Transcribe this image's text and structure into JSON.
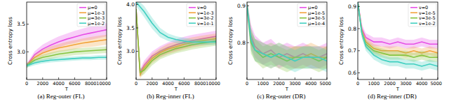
{
  "chart_data": [
    {
      "type": "line",
      "title": "(a) Reg-outer (FL)",
      "x_label": "T",
      "y_label": "Cross entropy loss",
      "x": [
        0,
        1000,
        2000,
        3000,
        4000,
        5000,
        6000,
        7000,
        8000,
        9000,
        10000
      ],
      "xlim": [
        0,
        10000
      ],
      "xticks": [
        0,
        2000,
        4000,
        6000,
        8000,
        10000
      ],
      "ylim": [
        2.5,
        3.9
      ],
      "yticks": [
        {
          "value": 3,
          "label": "3.0"
        },
        3.5
      ],
      "grid": false,
      "legend": "upper right",
      "series": [
        {
          "name": "μ=0",
          "color": "#e64ee6",
          "values": [
            2.75,
            2.95,
            3.05,
            3.12,
            3.18,
            3.23,
            3.27,
            3.31,
            3.34,
            3.37,
            3.4
          ],
          "error": [
            0.04,
            0.06,
            0.08,
            0.09,
            0.1,
            0.1,
            0.11,
            0.11,
            0.12,
            0.12,
            0.12
          ]
        },
        {
          "name": "μ=1e-3",
          "color": "#f2a33a",
          "values": [
            2.75,
            2.9,
            2.98,
            3.03,
            3.07,
            3.1,
            3.13,
            3.16,
            3.18,
            3.2,
            3.22
          ],
          "error": [
            0.04,
            0.05,
            0.06,
            0.07,
            0.07,
            0.08,
            0.08,
            0.08,
            0.09,
            0.09,
            0.09
          ]
        },
        {
          "name": "μ=3e-3",
          "color": "#86c440",
          "values": [
            2.75,
            2.85,
            2.9,
            2.93,
            2.96,
            2.98,
            3.0,
            3.01,
            3.02,
            3.03,
            3.04
          ],
          "error": [
            0.04,
            0.05,
            0.05,
            0.06,
            0.06,
            0.06,
            0.06,
            0.06,
            0.06,
            0.06,
            0.06
          ]
        },
        {
          "name": "μ=1e-2",
          "color": "#3fcfc0",
          "values": [
            2.75,
            2.8,
            2.83,
            2.85,
            2.86,
            2.87,
            2.88,
            2.89,
            2.89,
            2.9,
            2.9
          ],
          "error": [
            0.04,
            0.04,
            0.04,
            0.04,
            0.04,
            0.04,
            0.04,
            0.04,
            0.04,
            0.04,
            0.04
          ]
        }
      ]
    },
    {
      "type": "line",
      "title": "(b) Reg-inner (FL)",
      "x_label": "T",
      "y_label": "Cross entropy loss",
      "x": [
        0,
        500,
        1000,
        2000,
        3000,
        4000,
        5000,
        6000,
        7000,
        8000,
        10000
      ],
      "xlim": [
        0,
        10000
      ],
      "xticks": [
        0,
        2000,
        4000,
        6000,
        8000,
        10000
      ],
      "ylim": [
        2.4,
        4.05
      ],
      "yticks": [
        {
          "value": 3,
          "label": "3.0"
        },
        3.5,
        {
          "value": 4,
          "label": "4.0"
        }
      ],
      "grid": false,
      "legend": "upper right",
      "series": [
        {
          "name": "ν=0",
          "color": "#e64ee6",
          "values": [
            3.9,
            2.55,
            2.7,
            2.9,
            3.0,
            3.08,
            3.14,
            3.19,
            3.23,
            3.26,
            3.32
          ],
          "error": [
            0.1,
            0.08,
            0.1,
            0.1,
            0.11,
            0.11,
            0.12,
            0.12,
            0.12,
            0.12,
            0.12
          ]
        },
        {
          "name": "ν=1e-3",
          "color": "#f2a33a",
          "values": [
            3.9,
            2.5,
            2.65,
            2.85,
            2.97,
            3.05,
            3.1,
            3.15,
            3.19,
            3.22,
            3.27
          ],
          "error": [
            0.1,
            0.08,
            0.1,
            0.1,
            0.1,
            0.11,
            0.11,
            0.11,
            0.11,
            0.11,
            0.11
          ]
        },
        {
          "name": "ν=3e-2",
          "color": "#86c440",
          "values": [
            3.9,
            2.55,
            2.6,
            2.8,
            2.93,
            3.0,
            3.06,
            3.1,
            3.14,
            3.17,
            3.22
          ],
          "error": [
            0.1,
            0.08,
            0.09,
            0.1,
            0.1,
            0.1,
            0.1,
            0.1,
            0.1,
            0.1,
            0.1
          ]
        },
        {
          "name": "ν=1e-1",
          "color": "#3fcfc0",
          "values": [
            4.05,
            3.95,
            3.85,
            3.6,
            3.4,
            3.3,
            3.25,
            3.22,
            3.2,
            3.2,
            3.2
          ],
          "error": [
            0.08,
            0.1,
            0.12,
            0.12,
            0.1,
            0.08,
            0.07,
            0.07,
            0.06,
            0.06,
            0.06
          ]
        }
      ]
    },
    {
      "type": "line",
      "title": "(c) Reg-outer (DR)",
      "x_label": "T",
      "y_label": "Cross entropy loss",
      "x": [
        0,
        250,
        500,
        1000,
        1500,
        2000,
        2500,
        3000,
        3500,
        4000,
        4500,
        5000
      ],
      "xlim": [
        0,
        5000
      ],
      "xticks": [
        0,
        1000,
        2000,
        3000,
        4000,
        5000
      ],
      "ylim": [
        0.7,
        0.91
      ],
      "yticks": [
        0.8,
        0.9
      ],
      "grid": false,
      "legend": "upper right",
      "series": [
        {
          "name": "μ=0",
          "color": "#e64ee6",
          "values": [
            0.9,
            0.82,
            0.79,
            0.77,
            0.78,
            0.76,
            0.77,
            0.76,
            0.77,
            0.76,
            0.76,
            0.77
          ],
          "error": [
            0.02,
            0.03,
            0.03,
            0.03,
            0.03,
            0.03,
            0.03,
            0.03,
            0.03,
            0.03,
            0.03,
            0.03
          ]
        },
        {
          "name": "μ=1e-5",
          "color": "#f2a33a",
          "values": [
            0.9,
            0.81,
            0.78,
            0.77,
            0.76,
            0.77,
            0.76,
            0.76,
            0.76,
            0.77,
            0.76,
            0.76
          ],
          "error": [
            0.02,
            0.03,
            0.03,
            0.03,
            0.03,
            0.03,
            0.03,
            0.03,
            0.03,
            0.03,
            0.03,
            0.03
          ]
        },
        {
          "name": "μ=3e-5",
          "color": "#86c440",
          "values": [
            0.9,
            0.8,
            0.78,
            0.76,
            0.77,
            0.76,
            0.75,
            0.76,
            0.76,
            0.76,
            0.75,
            0.76
          ],
          "error": [
            0.02,
            0.03,
            0.03,
            0.03,
            0.03,
            0.03,
            0.03,
            0.03,
            0.03,
            0.03,
            0.03,
            0.03
          ]
        },
        {
          "name": "μ=1e-4",
          "color": "#3fcfc0",
          "values": [
            0.9,
            0.81,
            0.78,
            0.77,
            0.76,
            0.77,
            0.76,
            0.75,
            0.76,
            0.76,
            0.76,
            0.75
          ],
          "error": [
            0.02,
            0.03,
            0.03,
            0.03,
            0.03,
            0.03,
            0.03,
            0.03,
            0.03,
            0.03,
            0.03,
            0.03
          ]
        }
      ]
    },
    {
      "type": "line",
      "title": "(d) Reg-inner (DR)",
      "x_label": "T",
      "y_label": "Cross entropy loss",
      "x": [
        0,
        250,
        500,
        1000,
        1500,
        2000,
        2500,
        3000,
        3500,
        4000,
        4500,
        5000
      ],
      "xlim": [
        0,
        5000
      ],
      "xticks": [
        0,
        1000,
        2000,
        3000,
        4000,
        5000
      ],
      "ylim": [
        0.57,
        0.92
      ],
      "yticks": [
        0.6,
        0.7,
        0.8,
        0.9
      ],
      "grid": false,
      "legend": "upper right",
      "series": [
        {
          "name": "ν=0",
          "color": "#e64ee6",
          "values": [
            0.92,
            0.8,
            0.76,
            0.74,
            0.74,
            0.73,
            0.74,
            0.73,
            0.73,
            0.74,
            0.73,
            0.73
          ],
          "error": [
            0.02,
            0.02,
            0.02,
            0.02,
            0.02,
            0.02,
            0.02,
            0.02,
            0.02,
            0.02,
            0.02,
            0.02
          ]
        },
        {
          "name": "ν=1e-5",
          "color": "#f2a33a",
          "values": [
            0.92,
            0.79,
            0.74,
            0.71,
            0.7,
            0.7,
            0.7,
            0.69,
            0.7,
            0.69,
            0.7,
            0.69
          ],
          "error": [
            0.02,
            0.02,
            0.02,
            0.02,
            0.02,
            0.02,
            0.02,
            0.02,
            0.02,
            0.02,
            0.02,
            0.02
          ]
        },
        {
          "name": "ν=3e-5",
          "color": "#86c440",
          "values": [
            0.92,
            0.78,
            0.73,
            0.7,
            0.69,
            0.68,
            0.68,
            0.68,
            0.67,
            0.68,
            0.67,
            0.67
          ],
          "error": [
            0.02,
            0.02,
            0.02,
            0.02,
            0.02,
            0.02,
            0.02,
            0.02,
            0.02,
            0.02,
            0.02,
            0.02
          ]
        },
        {
          "name": "ν=1e-2",
          "color": "#3fcfc0",
          "values": [
            0.92,
            0.78,
            0.72,
            0.68,
            0.66,
            0.65,
            0.65,
            0.64,
            0.64,
            0.63,
            0.64,
            0.63
          ],
          "error": [
            0.02,
            0.02,
            0.02,
            0.02,
            0.02,
            0.02,
            0.02,
            0.02,
            0.02,
            0.02,
            0.02,
            0.02
          ]
        }
      ]
    }
  ]
}
